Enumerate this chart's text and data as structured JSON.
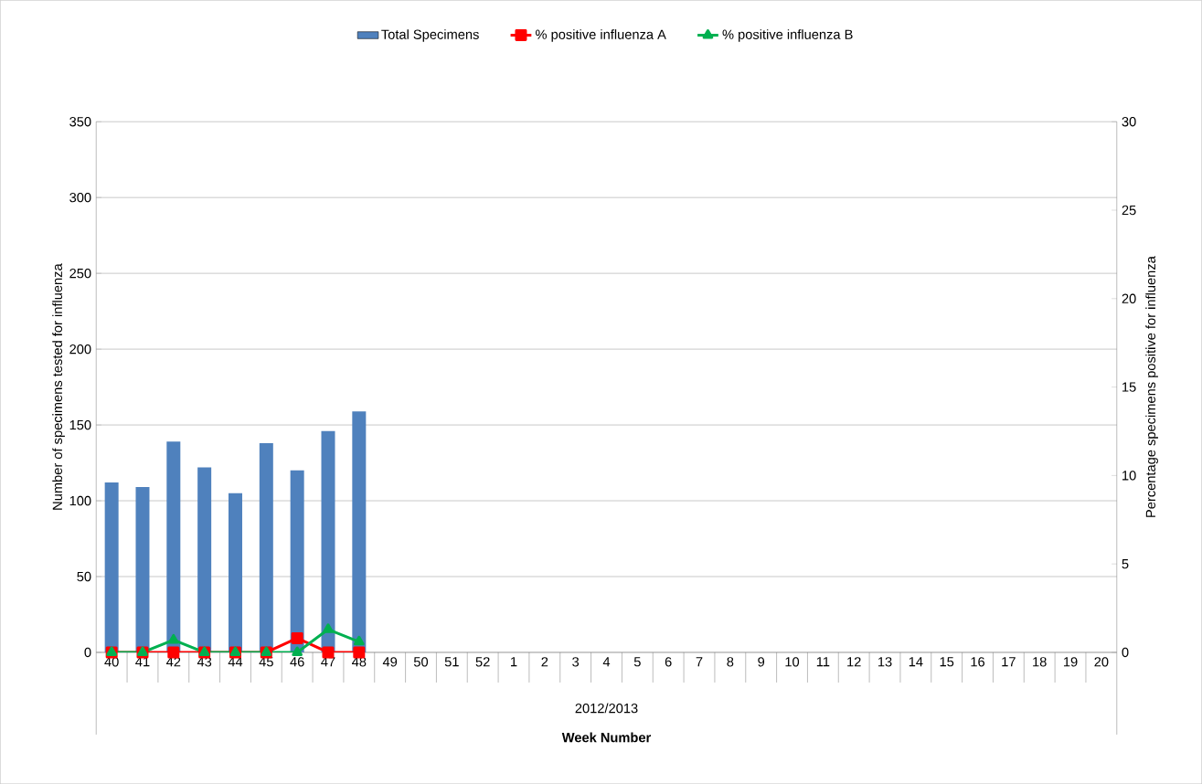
{
  "chart_data": {
    "type": "bar",
    "categories": [
      "40",
      "41",
      "42",
      "43",
      "44",
      "45",
      "46",
      "47",
      "48",
      "49",
      "50",
      "51",
      "52",
      "1",
      "2",
      "3",
      "4",
      "5",
      "6",
      "7",
      "8",
      "9",
      "10",
      "11",
      "12",
      "13",
      "14",
      "15",
      "16",
      "17",
      "18",
      "19",
      "20"
    ],
    "series": [
      {
        "name": "Total Specimens",
        "color": "#4f81bd",
        "values": [
          112,
          109,
          139,
          122,
          105,
          138,
          120,
          146,
          159,
          null,
          null,
          null,
          null,
          null,
          null,
          null,
          null,
          null,
          null,
          null,
          null,
          null,
          null,
          null,
          null,
          null,
          null,
          null,
          null,
          null,
          null,
          null,
          null
        ]
      },
      {
        "name": "% positive influenza A",
        "type": "line",
        "axis": "y2",
        "marker": "square",
        "color": "#ff0000",
        "values": [
          0,
          0,
          0,
          0,
          0,
          0,
          0.8,
          0,
          0,
          null,
          null,
          null,
          null,
          null,
          null,
          null,
          null,
          null,
          null,
          null,
          null,
          null,
          null,
          null,
          null,
          null,
          null,
          null,
          null,
          null,
          null,
          null,
          null
        ]
      },
      {
        "name": "% positive influenza B",
        "type": "line",
        "axis": "y2",
        "marker": "triangle",
        "color": "#00b050",
        "values": [
          0,
          0,
          0.7,
          0,
          0,
          0,
          0,
          1.3,
          0.6,
          null,
          null,
          null,
          null,
          null,
          null,
          null,
          null,
          null,
          null,
          null,
          null,
          null,
          null,
          null,
          null,
          null,
          null,
          null,
          null,
          null,
          null,
          null,
          null
        ]
      }
    ],
    "xlabel": "Week Number",
    "ylabel": "Number of specimens tested for influenza",
    "y2label": "Percentage specimens positive for influenza",
    "annotations": [
      "2012/2013"
    ],
    "ylim": [
      0,
      350
    ],
    "yticks": [
      0,
      50,
      100,
      150,
      200,
      250,
      300,
      350
    ],
    "y2lim": [
      0,
      30
    ],
    "y2ticks": [
      0,
      5,
      10,
      15,
      20,
      25,
      30
    ],
    "grid": "y",
    "legend": "top"
  }
}
